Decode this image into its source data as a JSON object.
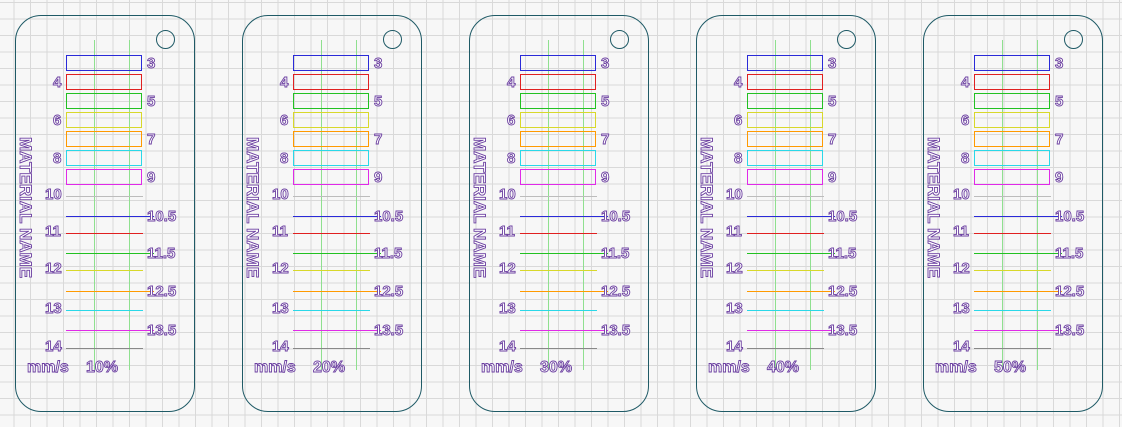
{
  "material_label": "MATERIAL NAME",
  "unit_label": "mm/s",
  "speeds": [
    "10%",
    "20%",
    "30%",
    "40%",
    "50%"
  ],
  "swatch_levels": [
    "3",
    "4",
    "5",
    "6",
    "7",
    "8",
    "9"
  ],
  "line_levels": [
    "10",
    "10.5",
    "11",
    "11.5",
    "12",
    "12.5",
    "13",
    "13.5",
    "14"
  ],
  "colors": {
    "outline": "#1f5a66",
    "guide": "#8fe08f",
    "text": "#6b3fa0",
    "swatches": [
      "#2a2ad8",
      "#e02020",
      "#22c122",
      "#d8d82a",
      "#ff9a00",
      "#2ad8e8",
      "#e02ae8"
    ],
    "lines": [
      "#bcbcbc",
      "#2a2ad8",
      "#e02020",
      "#22c122",
      "#d8d82a",
      "#ff9a00",
      "#2ad8e8",
      "#e02ae8",
      "#888888"
    ]
  }
}
